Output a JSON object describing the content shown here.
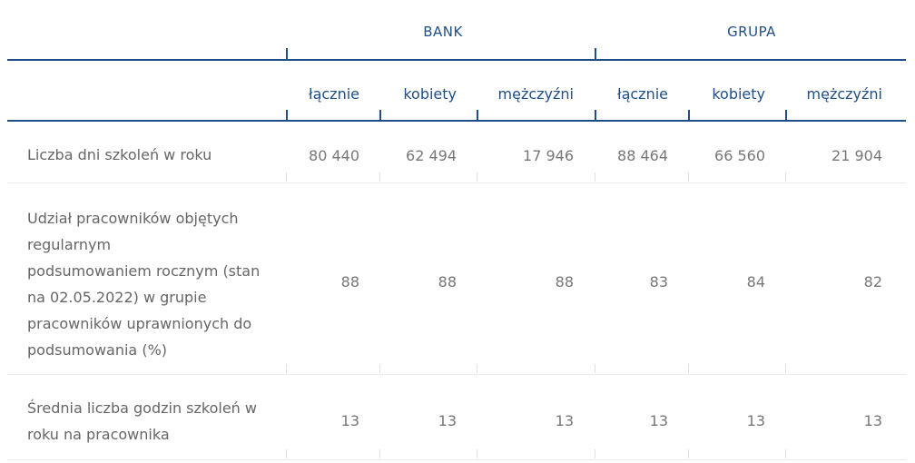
{
  "groups": {
    "bank": "BANK",
    "grupa": "GRUPA"
  },
  "columns": [
    "łącznie",
    "kobiety",
    "mężczyźni",
    "łącznie",
    "kobiety",
    "mężczyźni"
  ],
  "rows": [
    {
      "label": "Liczba dni szkoleń w roku",
      "values": [
        "80 440",
        "62 494",
        "17 946",
        "88 464",
        "66 560",
        "21 904"
      ]
    },
    {
      "label_lines": [
        "Udział pracowników objętych",
        "regularnym",
        "podsumowaniem rocznym (stan",
        "na 02.05.2022) w grupie",
        "pracowników uprawnionych do",
        "podsumowania (%)"
      ],
      "values": [
        "88",
        "88",
        "88",
        "83",
        "84",
        "82"
      ]
    },
    {
      "label_lines": [
        "Średnia liczba godzin szkoleń w",
        "roku na pracownika"
      ],
      "values": [
        "13",
        "13",
        "13",
        "13",
        "13",
        "13"
      ]
    }
  ]
}
